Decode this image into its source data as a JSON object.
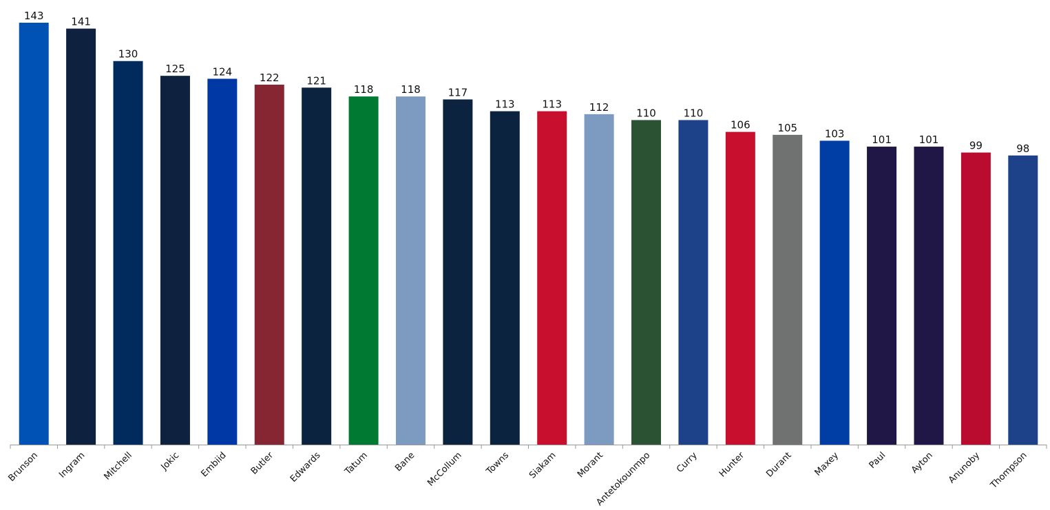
{
  "chart_data": {
    "type": "bar",
    "title": "",
    "xlabel": "",
    "ylabel": "",
    "ylim": [
      0,
      143
    ],
    "grid": false,
    "legend": "none",
    "categories": [
      "Brunson",
      "Ingram",
      "Mitchell",
      "Jokic",
      "Embiid",
      "Butler",
      "Edwards",
      "Tatum",
      "Bane",
      "McCollum",
      "Towns",
      "Siakam",
      "Morant",
      "Antetokounmpo",
      "Curry",
      "Hunter",
      "Durant",
      "Maxey",
      "Paul",
      "Ayton",
      "Anunoby",
      "Thompson"
    ],
    "values": [
      143,
      141,
      130,
      125,
      124,
      122,
      121,
      118,
      118,
      117,
      113,
      113,
      112,
      110,
      110,
      106,
      105,
      103,
      101,
      101,
      99,
      98
    ],
    "colors": [
      "#0052B4",
      "#0E2240",
      "#002B5C",
      "#0E2240",
      "#0039A6",
      "#862633",
      "#0C2340",
      "#007A33",
      "#7D9BC1",
      "#0C2340",
      "#0C2340",
      "#C8102E",
      "#7D9BC1",
      "#2C5234",
      "#1D428A",
      "#C8102E",
      "#707271",
      "#003DA5",
      "#201747",
      "#201747",
      "#BA0C2F",
      "#1D428A"
    ]
  }
}
